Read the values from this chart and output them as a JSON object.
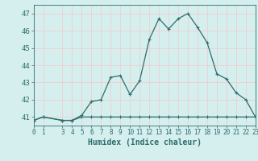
{
  "x_main": [
    0,
    1,
    3,
    4,
    5,
    6,
    7,
    8,
    9,
    10,
    11,
    12,
    13,
    14,
    15,
    16,
    17,
    18,
    19,
    20,
    21,
    22,
    23
  ],
  "y_main": [
    40.8,
    41.0,
    40.8,
    40.8,
    41.1,
    41.9,
    42.0,
    43.3,
    43.4,
    42.3,
    43.1,
    45.5,
    46.7,
    46.1,
    46.7,
    47.0,
    46.2,
    45.3,
    43.5,
    43.2,
    42.4,
    42.0,
    41.0
  ],
  "x_flat": [
    0,
    1,
    3,
    4,
    5,
    6,
    7,
    8,
    9,
    10,
    11,
    12,
    13,
    14,
    15,
    16,
    17,
    18,
    19,
    20,
    21,
    22,
    23
  ],
  "y_flat": [
    40.8,
    41.0,
    40.8,
    40.8,
    41.0,
    41.0,
    41.0,
    41.0,
    41.0,
    41.0,
    41.0,
    41.0,
    41.0,
    41.0,
    41.0,
    41.0,
    41.0,
    41.0,
    41.0,
    41.0,
    41.0,
    41.0,
    41.0
  ],
  "line_color": "#2d6e6e",
  "marker": "+",
  "bg_color": "#d5eeee",
  "grid_color": "#f5c8c8",
  "grid_color2": "#ffffff",
  "xlabel": "Humidex (Indice chaleur)",
  "ylabel_ticks": [
    41,
    42,
    43,
    44,
    45,
    46,
    47
  ],
  "xlim": [
    0,
    23
  ],
  "ylim": [
    40.5,
    47.5
  ],
  "xticks": [
    0,
    1,
    3,
    4,
    5,
    6,
    7,
    8,
    9,
    10,
    11,
    12,
    13,
    14,
    15,
    16,
    17,
    18,
    19,
    20,
    21,
    22,
    23
  ],
  "font_color": "#2d6e6e",
  "fontsize_label": 7,
  "fontsize_ticks": 6.5,
  "markersize": 3.5,
  "linewidth": 0.9
}
